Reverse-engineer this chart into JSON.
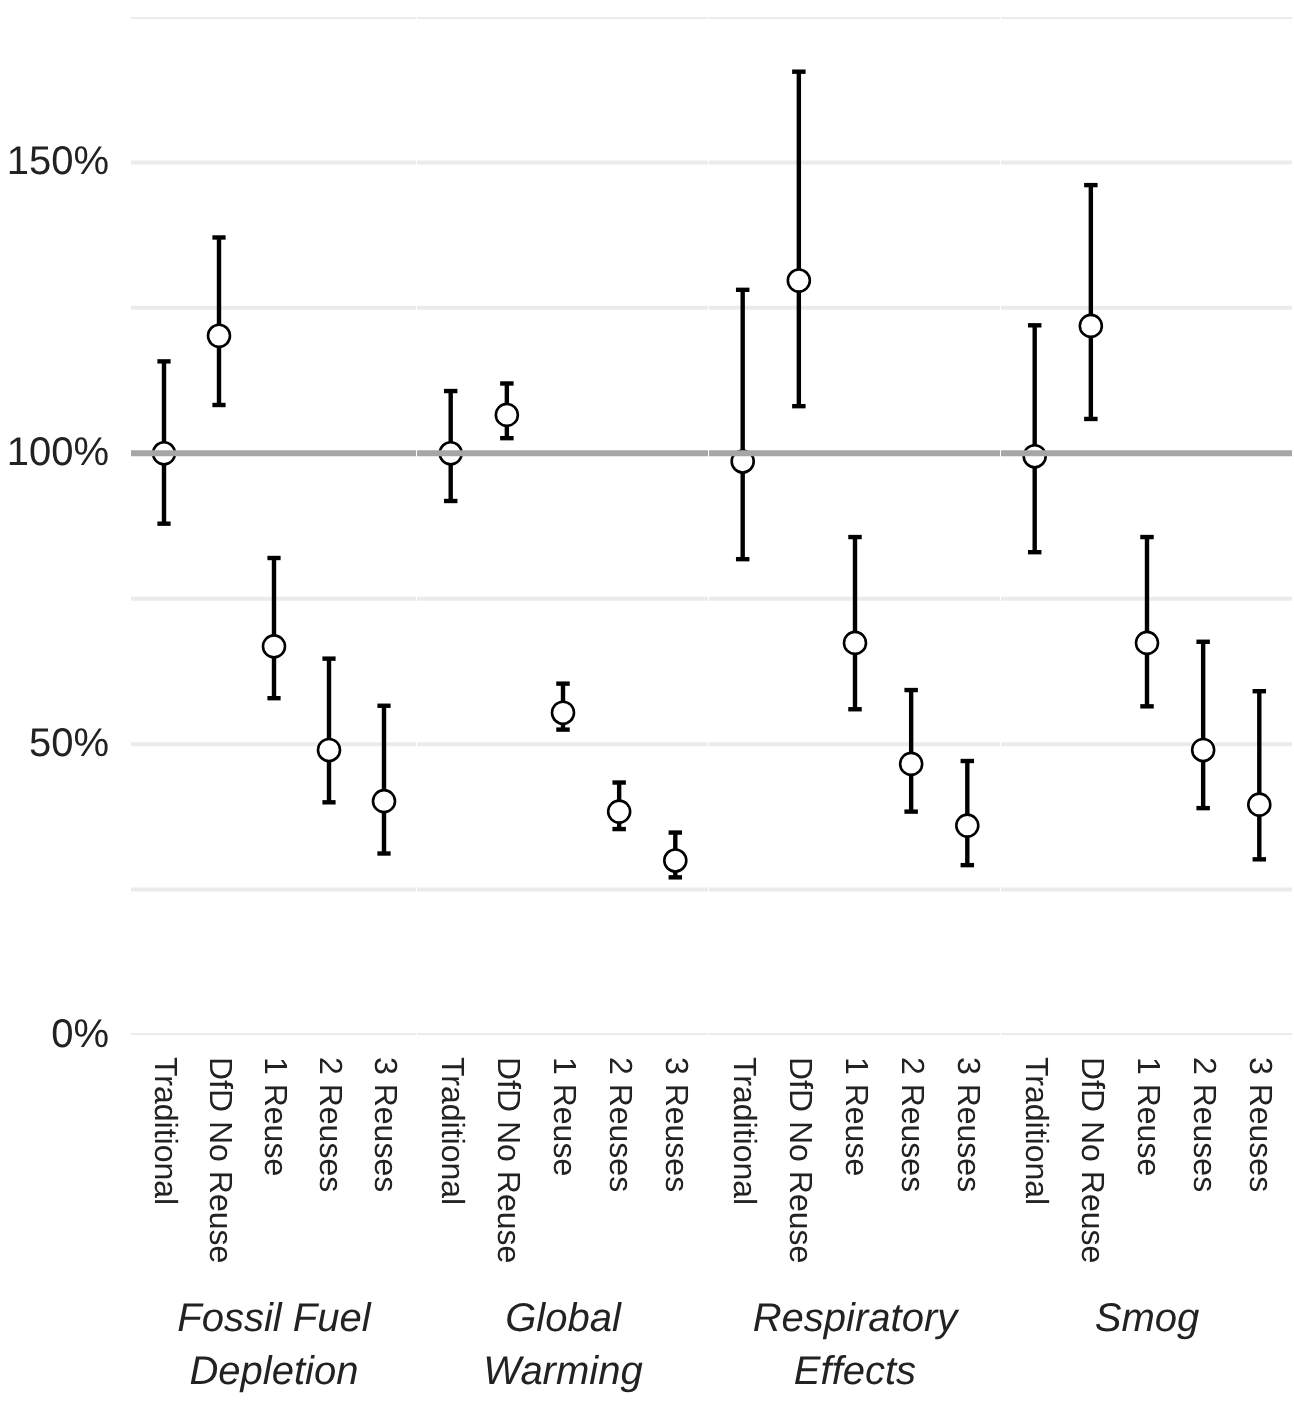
{
  "chart_data": [
    {
      "type": "scatter",
      "xlabel": "Fossil Fuel Depletion",
      "categories": [
        "Traditional",
        "DfD No Reuse",
        "1 Reuse",
        "2 Reuses",
        "3 Reuses"
      ],
      "series": [
        {
          "color": "#000000",
          "values": [
            100,
            120.2,
            66.8,
            49.0,
            40.2
          ],
          "errors": [
            [
              87.9,
              115.8
            ],
            [
              108.3,
              137.1
            ],
            [
              57.9,
              82.0
            ],
            [
              40.0,
              64.7
            ],
            [
              31.2,
              56.6
            ]
          ]
        }
      ],
      "marker": "circle",
      "ylim": [
        0,
        175
      ],
      "yticks": [
        {
          "value": 0,
          "label": "0%"
        },
        {
          "value": 25,
          "label": null
        },
        {
          "value": 50,
          "label": "50%"
        },
        {
          "value": 75,
          "label": null
        },
        {
          "value": 100,
          "label": "100%"
        },
        {
          "value": 125,
          "label": null
        },
        {
          "value": 150,
          "label": "150%"
        },
        {
          "value": 175,
          "label": null
        }
      ],
      "grid": "y",
      "ref_lines": [
        {
          "axis": "y",
          "value": 100,
          "color": "#a6a6a6"
        }
      ]
    },
    {
      "type": "scatter",
      "xlabel": "Global Warming",
      "categories": [
        "Traditional",
        "DfD No Reuse",
        "1 Reuse",
        "2 Reuses",
        "3 Reuses"
      ],
      "series": [
        {
          "color": "#000000",
          "values": [
            100,
            106.6,
            55.4,
            38.4,
            30.0
          ],
          "errors": [
            [
              91.8,
              110.7
            ],
            [
              102.6,
              112.0
            ],
            [
              52.5,
              60.4
            ],
            [
              35.4,
              43.4
            ],
            [
              27.1,
              34.8
            ]
          ]
        }
      ],
      "marker": "circle",
      "ylim": [
        0,
        175
      ],
      "yticks": [
        0,
        25,
        50,
        75,
        100,
        125,
        150,
        175
      ],
      "grid": "y",
      "tick_labels": "x",
      "ref_lines": [
        {
          "axis": "y",
          "value": 100,
          "color": "#a6a6a6"
        }
      ]
    },
    {
      "type": "scatter",
      "xlabel": "Respiratory Effects",
      "categories": [
        "Traditional",
        "DfD No Reuse",
        "1 Reuse",
        "2 Reuses",
        "3 Reuses"
      ],
      "series": [
        {
          "color": "#000000",
          "values": [
            98.6,
            129.7,
            67.4,
            46.6,
            36.0
          ],
          "errors": [
            [
              81.8,
              128.1
            ],
            [
              108.1,
              165.6
            ],
            [
              56.0,
              85.6
            ],
            [
              38.4,
              59.3
            ],
            [
              29.2,
              47.1
            ]
          ]
        }
      ],
      "marker": "circle",
      "ylim": [
        0,
        175
      ],
      "yticks": [
        0,
        25,
        50,
        75,
        100,
        125,
        150,
        175
      ],
      "grid": "y",
      "tick_labels": "x",
      "ref_lines": [
        {
          "axis": "y",
          "value": 100,
          "color": "#a6a6a6"
        }
      ]
    },
    {
      "type": "scatter",
      "xlabel": "Smog",
      "categories": [
        "Traditional",
        "DfD No Reuse",
        "1 Reuse",
        "2 Reuses",
        "3 Reuses"
      ],
      "series": [
        {
          "color": "#000000",
          "values": [
            99.5,
            121.9,
            67.4,
            49.0,
            39.6
          ],
          "errors": [
            [
              83.0,
              122.0
            ],
            [
              105.9,
              146.1
            ],
            [
              56.5,
              85.6
            ],
            [
              39.0,
              67.6
            ],
            [
              30.2,
              59.1
            ]
          ]
        }
      ],
      "marker": "circle",
      "ylim": [
        0,
        175
      ],
      "yticks": [
        0,
        25,
        50,
        75,
        100,
        125,
        150,
        175
      ],
      "grid": "y",
      "tick_labels": "x",
      "ref_lines": [
        {
          "axis": "y",
          "value": 100,
          "color": "#a6a6a6"
        }
      ]
    }
  ]
}
